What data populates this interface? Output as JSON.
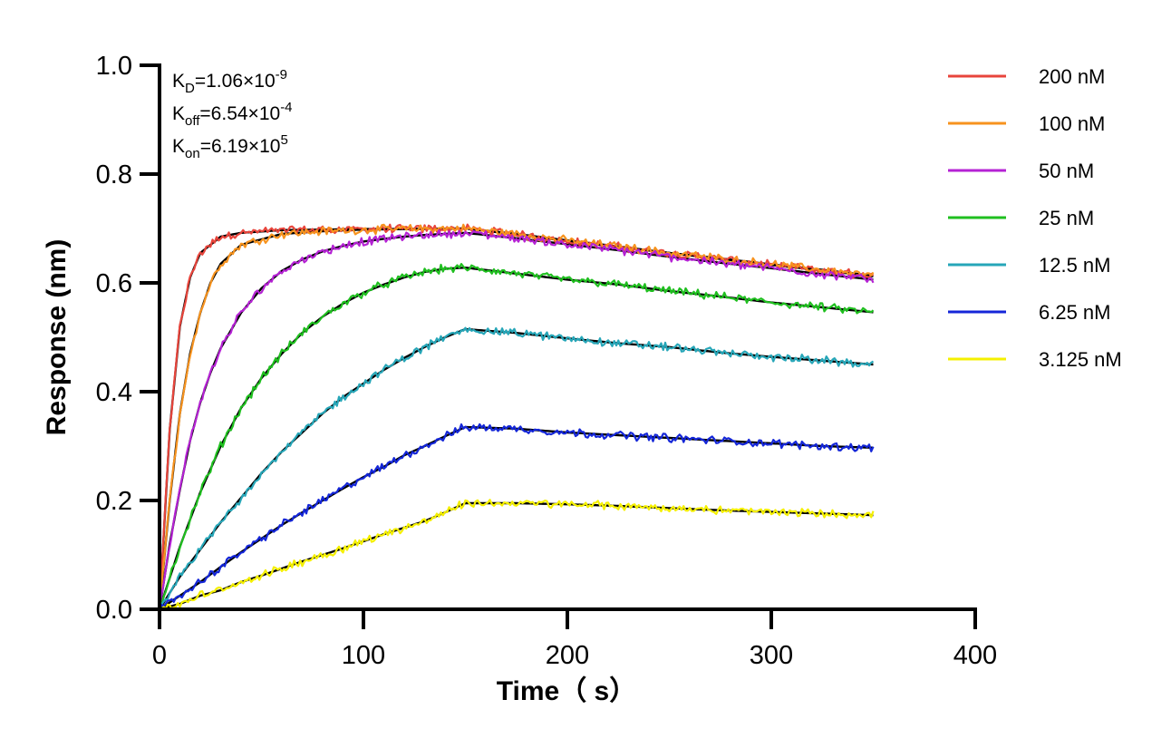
{
  "chart_data": {
    "type": "line",
    "xlabel": "Time（ s）",
    "ylabel": "Response (nm)",
    "xlim": [
      0,
      400
    ],
    "ylim": [
      0,
      1.0
    ],
    "x_ticks": [
      "0",
      "100",
      "200",
      "300",
      "400"
    ],
    "y_ticks": [
      "0.0",
      "0.2",
      "0.4",
      "0.6",
      "0.8",
      "1.0"
    ],
    "grid": false,
    "legend_position": "right",
    "association_end_s": 150,
    "run_end_s": 350,
    "annotations": [
      {
        "base": "K",
        "sub": "D",
        "text": "=1.06×10",
        "sup": "-9"
      },
      {
        "base": "K",
        "sub": "off",
        "text": "=6.54×10",
        "sup": "-4"
      },
      {
        "base": "K",
        "sub": "on",
        "text": "=6.19×10",
        "sup": "5"
      }
    ],
    "series": [
      {
        "name": "200 nM",
        "color": "#e8453c",
        "x": [
          0,
          5,
          10,
          15,
          20,
          30,
          40,
          60,
          80,
          100,
          120,
          150,
          175,
          200,
          225,
          250,
          275,
          300,
          325,
          350
        ],
        "y": [
          0.0,
          0.33,
          0.52,
          0.61,
          0.655,
          0.685,
          0.692,
          0.697,
          0.698,
          0.699,
          0.699,
          0.7,
          0.689,
          0.677,
          0.666,
          0.655,
          0.644,
          0.633,
          0.623,
          0.612
        ]
      },
      {
        "name": "100 nM",
        "color": "#f7931e",
        "x": [
          0,
          5,
          10,
          15,
          20,
          25,
          30,
          40,
          60,
          80,
          100,
          120,
          150,
          175,
          200,
          225,
          250,
          275,
          300,
          325,
          350
        ],
        "y": [
          0.0,
          0.2,
          0.36,
          0.47,
          0.545,
          0.6,
          0.635,
          0.67,
          0.69,
          0.695,
          0.698,
          0.699,
          0.7,
          0.69,
          0.678,
          0.667,
          0.655,
          0.645,
          0.634,
          0.624,
          0.613
        ]
      },
      {
        "name": "50 nM",
        "color": "#b522d4",
        "x": [
          0,
          5,
          10,
          15,
          20,
          25,
          30,
          40,
          50,
          60,
          70,
          80,
          90,
          100,
          110,
          120,
          130,
          140,
          150,
          175,
          200,
          225,
          250,
          275,
          300,
          325,
          350
        ],
        "y": [
          0.0,
          0.12,
          0.22,
          0.31,
          0.38,
          0.435,
          0.48,
          0.545,
          0.59,
          0.622,
          0.643,
          0.658,
          0.668,
          0.676,
          0.681,
          0.685,
          0.688,
          0.69,
          0.692,
          0.682,
          0.671,
          0.66,
          0.648,
          0.637,
          0.627,
          0.616,
          0.606
        ]
      },
      {
        "name": "25 nM",
        "color": "#1fbf1f",
        "x": [
          0,
          10,
          20,
          30,
          40,
          50,
          60,
          70,
          80,
          90,
          100,
          110,
          120,
          130,
          140,
          150,
          175,
          200,
          225,
          250,
          275,
          300,
          325,
          350
        ],
        "y": [
          0.0,
          0.115,
          0.215,
          0.3,
          0.37,
          0.425,
          0.47,
          0.508,
          0.538,
          0.562,
          0.582,
          0.597,
          0.61,
          0.62,
          0.626,
          0.628,
          0.617,
          0.606,
          0.597,
          0.585,
          0.575,
          0.564,
          0.555,
          0.546
        ]
      },
      {
        "name": "12.5 nM",
        "color": "#26a6b8",
        "x": [
          0,
          10,
          20,
          30,
          40,
          50,
          60,
          70,
          80,
          90,
          100,
          110,
          120,
          130,
          140,
          150,
          175,
          200,
          225,
          250,
          275,
          300,
          325,
          350
        ],
        "y": [
          0.0,
          0.06,
          0.11,
          0.16,
          0.205,
          0.25,
          0.29,
          0.325,
          0.36,
          0.39,
          0.415,
          0.44,
          0.462,
          0.482,
          0.5,
          0.515,
          0.508,
          0.498,
          0.489,
          0.482,
          0.472,
          0.464,
          0.457,
          0.45
        ]
      },
      {
        "name": "6.25 nM",
        "color": "#1426d8",
        "x": [
          0,
          10,
          20,
          30,
          40,
          50,
          60,
          70,
          80,
          90,
          100,
          110,
          120,
          130,
          140,
          150,
          175,
          200,
          225,
          250,
          275,
          300,
          325,
          350
        ],
        "y": [
          0.0,
          0.025,
          0.05,
          0.078,
          0.105,
          0.13,
          0.155,
          0.178,
          0.2,
          0.222,
          0.243,
          0.262,
          0.283,
          0.3,
          0.318,
          0.335,
          0.332,
          0.325,
          0.32,
          0.315,
          0.31,
          0.305,
          0.3,
          0.297
        ]
      },
      {
        "name": "3.125 nM",
        "color": "#f5f000",
        "x": [
          0,
          10,
          20,
          30,
          40,
          50,
          60,
          70,
          80,
          90,
          100,
          110,
          120,
          130,
          140,
          150,
          175,
          200,
          225,
          250,
          275,
          300,
          325,
          350
        ],
        "y": [
          0.0,
          0.01,
          0.025,
          0.035,
          0.05,
          0.062,
          0.075,
          0.088,
          0.1,
          0.112,
          0.125,
          0.138,
          0.15,
          0.162,
          0.178,
          0.195,
          0.195,
          0.193,
          0.19,
          0.186,
          0.182,
          0.179,
          0.176,
          0.173
        ]
      }
    ]
  }
}
